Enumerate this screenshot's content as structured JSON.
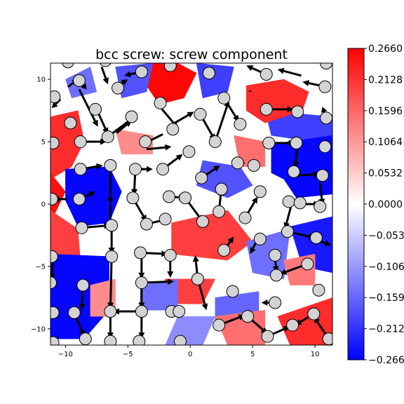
{
  "chart_data": {
    "type": "heatmap",
    "title": "bcc screw: screw component",
    "xlabel": "",
    "ylabel": "",
    "xlim": [
      -11.2,
      11.4
    ],
    "ylim": [
      -11.3,
      11.3
    ],
    "xticks": [
      "−10",
      "−5",
      "0",
      "5",
      "10"
    ],
    "xtick_values": [
      -10,
      -5,
      0,
      5,
      10
    ],
    "yticks": [
      "−10",
      "−5",
      "0",
      "5",
      "10"
    ],
    "ytick_values": [
      -10,
      -5,
      0,
      5,
      10
    ],
    "colormap": "bwr",
    "colors": {
      "low": "#0000ff",
      "mid": "#ffffff",
      "high": "#ff0000",
      "atom_fill": "#d3d3d3",
      "atom_edge": "#000000",
      "arrow": "#000000"
    },
    "colorbar": {
      "vmin": -0.266,
      "vmax": 0.266,
      "tick_labels": [
        "0.2660",
        "0.2128",
        "0.1596",
        "0.1064",
        "0.0532",
        "0.0000",
        "−0.0532",
        "−0.1064",
        "−0.1596",
        "−0.2128",
        "−0.2660"
      ],
      "tick_values": [
        0.266,
        0.2128,
        0.1596,
        0.1064,
        0.0532,
        0.0,
        -0.0532,
        -0.1064,
        -0.1596,
        -0.2128,
        -0.266
      ]
    },
    "regions": [
      {
        "value": 0.26,
        "polygon": [
          [
            -3.5,
            11.3
          ],
          [
            -1,
            11.3
          ],
          [
            0.5,
            10.5
          ],
          [
            -0.5,
            8.5
          ],
          [
            -2.5,
            8
          ],
          [
            -3.5,
            9.5
          ]
        ]
      },
      {
        "value": 0.22,
        "polygon": [
          [
            -11.2,
            7
          ],
          [
            -9,
            7.5
          ],
          [
            -8.5,
            5
          ],
          [
            -9.5,
            3
          ],
          [
            -11.2,
            2
          ]
        ]
      },
      {
        "value": 0.25,
        "polygon": [
          [
            -11.2,
            2.5
          ],
          [
            -10,
            1
          ],
          [
            -11.2,
            -1.5
          ]
        ]
      },
      {
        "value": 0.2,
        "polygon": [
          [
            -11.2,
            -0.5
          ],
          [
            -9,
            -2
          ],
          [
            -8.8,
            -4.5
          ],
          [
            -11.2,
            -4.5
          ]
        ]
      },
      {
        "value": -0.26,
        "polygon": [
          [
            -10,
            2.8
          ],
          [
            -6.5,
            3
          ],
          [
            -5.5,
            1
          ],
          [
            -6.5,
            -1.5
          ],
          [
            -9,
            -1.8
          ],
          [
            -10,
            0.3
          ]
        ]
      },
      {
        "value": -0.26,
        "polygon": [
          [
            -11.2,
            -4
          ],
          [
            -6.5,
            -4.2
          ],
          [
            -6.5,
            -8.5
          ],
          [
            -8.5,
            -10.8
          ],
          [
            -11.2,
            -10.8
          ]
        ]
      },
      {
        "value": -0.2,
        "polygon": [
          [
            6,
            7.5
          ],
          [
            11.4,
            7
          ],
          [
            11.4,
            4
          ],
          [
            8.5,
            5.2
          ],
          [
            6.5,
            5.5
          ]
        ]
      },
      {
        "value": -0.26,
        "polygon": [
          [
            6.5,
            4.8
          ],
          [
            11.4,
            5.5
          ],
          [
            11.4,
            0.8
          ],
          [
            8.5,
            0.5
          ],
          [
            7.5,
            2
          ],
          [
            6.5,
            2.5
          ]
        ]
      },
      {
        "value": -0.24,
        "polygon": [
          [
            8,
            -1.8
          ],
          [
            11.4,
            -1
          ],
          [
            11.4,
            -5.5
          ],
          [
            9,
            -5
          ]
        ]
      },
      {
        "value": 0.22,
        "polygon": [
          [
            4.5,
            9.5
          ],
          [
            7.5,
            10
          ],
          [
            9.5,
            9
          ],
          [
            9,
            7.5
          ],
          [
            6,
            6.5
          ],
          [
            4.5,
            7.5
          ]
        ]
      },
      {
        "value": 0.2,
        "polygon": [
          [
            -1.5,
            -1.5
          ],
          [
            3,
            -0.5
          ],
          [
            5,
            -3
          ],
          [
            3,
            -4.5
          ],
          [
            -1.5,
            -4
          ]
        ]
      },
      {
        "value": 0.22,
        "polygon": [
          [
            7,
            -9
          ],
          [
            11.4,
            -7.5
          ],
          [
            11.4,
            -11.3
          ],
          [
            8,
            -11.3
          ]
        ]
      },
      {
        "value": -0.18,
        "polygon": [
          [
            -6,
            11
          ],
          [
            -3,
            11.3
          ],
          [
            -3.5,
            9
          ],
          [
            -5.5,
            8.5
          ]
        ]
      },
      {
        "value": -0.2,
        "polygon": [
          [
            0.5,
            11.3
          ],
          [
            3.5,
            11
          ],
          [
            3,
            9
          ],
          [
            1,
            8.5
          ]
        ]
      },
      {
        "value": -0.15,
        "polygon": [
          [
            -10,
            10
          ],
          [
            -8,
            11
          ],
          [
            -7.5,
            9
          ],
          [
            -9.5,
            8.5
          ]
        ]
      },
      {
        "value": -0.18,
        "polygon": [
          [
            1,
            3.5
          ],
          [
            4,
            3
          ],
          [
            5,
            1.5
          ],
          [
            3,
            0.5
          ],
          [
            0.5,
            1.5
          ]
        ]
      },
      {
        "value": 0.2,
        "polygon": [
          [
            -2,
            -6
          ],
          [
            2,
            -6
          ],
          [
            1,
            -8
          ],
          [
            -2.5,
            -8
          ]
        ]
      },
      {
        "value": -0.15,
        "polygon": [
          [
            -4,
            -6.5
          ],
          [
            -1,
            -6
          ],
          [
            -1,
            -8.5
          ],
          [
            -4,
            -8.5
          ]
        ]
      },
      {
        "value": -0.16,
        "polygon": [
          [
            2,
            -7.5
          ],
          [
            5.5,
            -7
          ],
          [
            5.5,
            -10
          ],
          [
            2,
            -10
          ]
        ]
      },
      {
        "value": 0.15,
        "polygon": [
          [
            2,
            -9
          ],
          [
            6,
            -8.5
          ],
          [
            6,
            -11.3
          ],
          [
            3,
            -11.3
          ]
        ]
      },
      {
        "value": -0.15,
        "polygon": [
          [
            4.5,
            -3
          ],
          [
            8,
            -2
          ],
          [
            7.5,
            -6
          ],
          [
            5,
            -5.5
          ]
        ]
      },
      {
        "value": 0.12,
        "polygon": [
          [
            -8,
            -6.5
          ],
          [
            -6,
            -6
          ],
          [
            -6,
            -9
          ],
          [
            -8,
            -9
          ]
        ]
      },
      {
        "value": -0.12,
        "polygon": [
          [
            -1,
            -9
          ],
          [
            2,
            -9
          ],
          [
            1,
            -11.3
          ],
          [
            -2,
            -11.3
          ]
        ]
      },
      {
        "value": 0.15,
        "polygon": [
          [
            3.5,
            5.5
          ],
          [
            6,
            5
          ],
          [
            6,
            3
          ],
          [
            4,
            3
          ]
        ]
      },
      {
        "value": 0.12,
        "polygon": [
          [
            -6,
            6
          ],
          [
            -3,
            5.5
          ],
          [
            -3,
            4
          ],
          [
            -5.5,
            4
          ]
        ]
      },
      {
        "value": 0.14,
        "polygon": [
          [
            7.5,
            -4.5
          ],
          [
            10,
            -4
          ],
          [
            10,
            -6.5
          ],
          [
            8,
            -6.5
          ]
        ]
      }
    ],
    "atoms": [
      [
        -9.8,
        11.4
      ],
      [
        -6.8,
        11.5
      ],
      [
        -3.9,
        10.6
      ],
      [
        -1.6,
        11.1
      ],
      [
        1.5,
        10.5
      ],
      [
        6.1,
        10.4
      ],
      [
        10.9,
        11.3
      ],
      [
        -10.9,
        8.6
      ],
      [
        -8.9,
        9.9
      ],
      [
        -5.8,
        9.3
      ],
      [
        -7.6,
        7.6
      ],
      [
        -4.7,
        7.0
      ],
      [
        -2.4,
        8.1
      ],
      [
        0.8,
        7.2
      ],
      [
        2.7,
        8.5
      ],
      [
        6.1,
        7.6
      ],
      [
        8.6,
        7.4
      ],
      [
        10.8,
        9.4
      ],
      [
        10.9,
        6.9
      ],
      [
        -9.6,
        6.5
      ],
      [
        -11.0,
        4.9
      ],
      [
        -8.8,
        5.0
      ],
      [
        -6.6,
        5.4
      ],
      [
        -3.6,
        5.0
      ],
      [
        -1.4,
        6.0
      ],
      [
        2.0,
        5.0
      ],
      [
        4.0,
        6.4
      ],
      [
        6.3,
        4.9
      ],
      [
        8.5,
        4.9
      ],
      [
        10.8,
        4.6
      ],
      [
        -8.8,
        2.8
      ],
      [
        -6.4,
        3.1
      ],
      [
        -4.4,
        2.8
      ],
      [
        -2.2,
        2.8
      ],
      [
        -0.1,
        4.2
      ],
      [
        0.9,
        2.1
      ],
      [
        3.8,
        3.3
      ],
      [
        5.1,
        3.1
      ],
      [
        8.3,
        2.6
      ],
      [
        10.6,
        2.3
      ],
      [
        -11.1,
        0.4
      ],
      [
        -8.9,
        0.4
      ],
      [
        -4.6,
        0.5
      ],
      [
        -1.7,
        0.6
      ],
      [
        -0.4,
        0.5
      ],
      [
        2.5,
        1.2
      ],
      [
        5.6,
        1.0
      ],
      [
        7.9,
        0.2
      ],
      [
        8.8,
        0.1
      ],
      [
        10.4,
        -0.2
      ],
      [
        -8.7,
        -1.9
      ],
      [
        -6.3,
        -1.7
      ],
      [
        -3.5,
        -1.6
      ],
      [
        -2.0,
        -1.2
      ],
      [
        1.0,
        -1.4
      ],
      [
        2.3,
        -0.6
      ],
      [
        4.4,
        -1.1
      ],
      [
        5.6,
        -2.8
      ],
      [
        7.8,
        -2.2
      ],
      [
        10.1,
        -2.7
      ],
      [
        -11.1,
        -4.2
      ],
      [
        -6.3,
        -4.2
      ],
      [
        -4.0,
        -3.9
      ],
      [
        -1.6,
        -4.1
      ],
      [
        2.7,
        -3.7
      ],
      [
        6.8,
        -4.1
      ],
      [
        9.4,
        -4.8
      ],
      [
        -11.2,
        -6.3
      ],
      [
        -8.6,
        -6.5
      ],
      [
        -3.9,
        -6.3
      ],
      [
        0.6,
        -6.0
      ],
      [
        3.4,
        -7.0
      ],
      [
        6.9,
        -5.7
      ],
      [
        10.3,
        -6.9
      ],
      [
        -11.0,
        -8.7
      ],
      [
        -9.3,
        -8.7
      ],
      [
        -6.4,
        -8.6
      ],
      [
        -3.9,
        -8.6
      ],
      [
        -1.5,
        -8.6
      ],
      [
        -0.9,
        -8.6
      ],
      [
        6.8,
        -7.9
      ],
      [
        9.9,
        -8.8
      ],
      [
        -11.0,
        -11.1
      ],
      [
        -8.4,
        -10.8
      ],
      [
        -6.4,
        -11.0
      ],
      [
        -4.1,
        -11.0
      ],
      [
        -0.8,
        -11.0
      ],
      [
        2.3,
        -9.7
      ],
      [
        4.6,
        -9.0
      ],
      [
        6.2,
        -10.6
      ],
      [
        8.2,
        -9.7
      ],
      [
        11.1,
        -10.8
      ]
    ],
    "arrows": [
      [
        -7.1,
        11.0,
        -6.6,
        9.6
      ],
      [
        -9.8,
        9.4,
        -9.0,
        10.0
      ],
      [
        -5.9,
        9.4,
        -5.0,
        10.0
      ],
      [
        -3.9,
        10.6,
        -5.3,
        10.3
      ],
      [
        -8.9,
        9.9,
        -8.3,
        9.2
      ],
      [
        -7.5,
        7.6,
        -6.6,
        5.6
      ],
      [
        -8.9,
        9.2,
        -7.4,
        6.2
      ],
      [
        -10.4,
        8.4,
        -11.1,
        7.7
      ],
      [
        -6.6,
        5.4,
        -4.6,
        6.9
      ],
      [
        -5.9,
        5.7,
        -4.7,
        6.7
      ],
      [
        -2.5,
        7.9,
        -1.0,
        6.1
      ],
      [
        -2.2,
        5.6,
        -4.0,
        4.7
      ],
      [
        -1.6,
        6.3,
        0.3,
        7.4
      ],
      [
        0.8,
        7.2,
        2.0,
        5.1
      ],
      [
        2.0,
        5.0,
        3.1,
        8.3
      ],
      [
        2.7,
        8.5,
        3.9,
        6.6
      ],
      [
        6.1,
        7.6,
        8.3,
        7.6
      ],
      [
        4.8,
        9.1,
        4.8,
        9.0
      ],
      [
        6.1,
        10.4,
        4.5,
        11.1
      ],
      [
        8.9,
        10.3,
        7.0,
        10.8
      ],
      [
        10.9,
        9.4,
        9.0,
        9.8
      ],
      [
        10.9,
        6.9,
        10.6,
        7.8
      ],
      [
        -8.8,
        5.0,
        -6.7,
        5.0
      ],
      [
        -3.5,
        4.4,
        -1.5,
        4.6
      ],
      [
        -4.1,
        2.8,
        -3.0,
        2.8
      ],
      [
        -2.2,
        2.8,
        -0.6,
        4.0
      ],
      [
        6.3,
        4.9,
        8.4,
        4.9
      ],
      [
        8.6,
        4.6,
        8.4,
        2.9
      ],
      [
        -8.8,
        2.8,
        -7.0,
        3.1
      ],
      [
        -6.4,
        3.1,
        -6.4,
        0.0
      ],
      [
        -6.4,
        0.0,
        -6.4,
        -1.8
      ],
      [
        -4.4,
        2.8,
        -4.5,
        0.7
      ],
      [
        -3.7,
        2.8,
        -4.2,
        2.8
      ],
      [
        0.9,
        2.1,
        2.4,
        3.1
      ],
      [
        3.4,
        3.2,
        4.4,
        3.3
      ],
      [
        8.5,
        2.3,
        10.4,
        2.4
      ],
      [
        10.4,
        1.8,
        10.6,
        -0.1
      ],
      [
        8.2,
        0.3,
        7.6,
        -2.0
      ],
      [
        8.8,
        0.0,
        10.4,
        0.0
      ],
      [
        -8.9,
        0.4,
        -7.6,
        1.0
      ],
      [
        -9.9,
        0.4,
        -11.0,
        0.4
      ],
      [
        -4.6,
        0.5,
        -3.5,
        -1.4
      ],
      [
        -1.7,
        0.6,
        -0.4,
        0.5
      ],
      [
        -0.4,
        0.5,
        1.0,
        -1.4
      ],
      [
        2.3,
        -0.6,
        2.5,
        1.2
      ],
      [
        -8.7,
        -1.9,
        -6.4,
        -1.7
      ],
      [
        -6.3,
        -1.7,
        -6.3,
        -4.0
      ],
      [
        -3.5,
        -1.6,
        -1.8,
        -1.2
      ],
      [
        4.4,
        -1.1,
        5.4,
        0.6
      ],
      [
        5.5,
        -2.6,
        4.8,
        -4.0
      ],
      [
        7.8,
        -2.2,
        10.0,
        -2.7
      ],
      [
        10.2,
        -2.9,
        11.3,
        -3.3
      ],
      [
        -11.0,
        -4.2,
        -11.1,
        -6.1
      ],
      [
        -6.3,
        -4.2,
        -6.4,
        -8.4
      ],
      [
        -4.0,
        -3.9,
        -1.8,
        -4.0
      ],
      [
        -3.9,
        -4.2,
        -3.9,
        -6.0
      ],
      [
        -1.6,
        -4.1,
        -1.6,
        -5.9
      ],
      [
        2.7,
        -3.7,
        3.5,
        -2.6
      ],
      [
        6.8,
        -4.1,
        6.9,
        -5.5
      ],
      [
        9.4,
        -4.8,
        7.2,
        -5.6
      ],
      [
        -3.9,
        -6.3,
        -1.3,
        -6.2
      ],
      [
        -3.9,
        -6.3,
        -3.9,
        -8.4
      ],
      [
        0.6,
        -6.0,
        1.3,
        -8.5
      ],
      [
        0.6,
        -6.0,
        0.4,
        -4.1
      ],
      [
        -8.6,
        -6.5,
        -8.7,
        -8.5
      ],
      [
        -9.3,
        -8.7,
        -8.5,
        -10.6
      ],
      [
        -6.4,
        -8.6,
        -6.4,
        -10.8
      ],
      [
        -3.9,
        -8.6,
        -6.2,
        -8.6
      ],
      [
        -3.9,
        -8.6,
        -3.9,
        -10.8
      ],
      [
        -1.5,
        -8.6,
        -1.2,
        -8.6
      ],
      [
        6.8,
        -7.9,
        5.7,
        -7.9
      ],
      [
        9.9,
        -8.8,
        8.4,
        -9.7
      ],
      [
        4.6,
        -9.0,
        6.2,
        -10.4
      ],
      [
        2.3,
        -9.7,
        4.4,
        -8.9
      ],
      [
        6.2,
        -10.6,
        8.0,
        -9.8
      ],
      [
        11.1,
        -10.8,
        9.9,
        -9.0
      ]
    ]
  }
}
